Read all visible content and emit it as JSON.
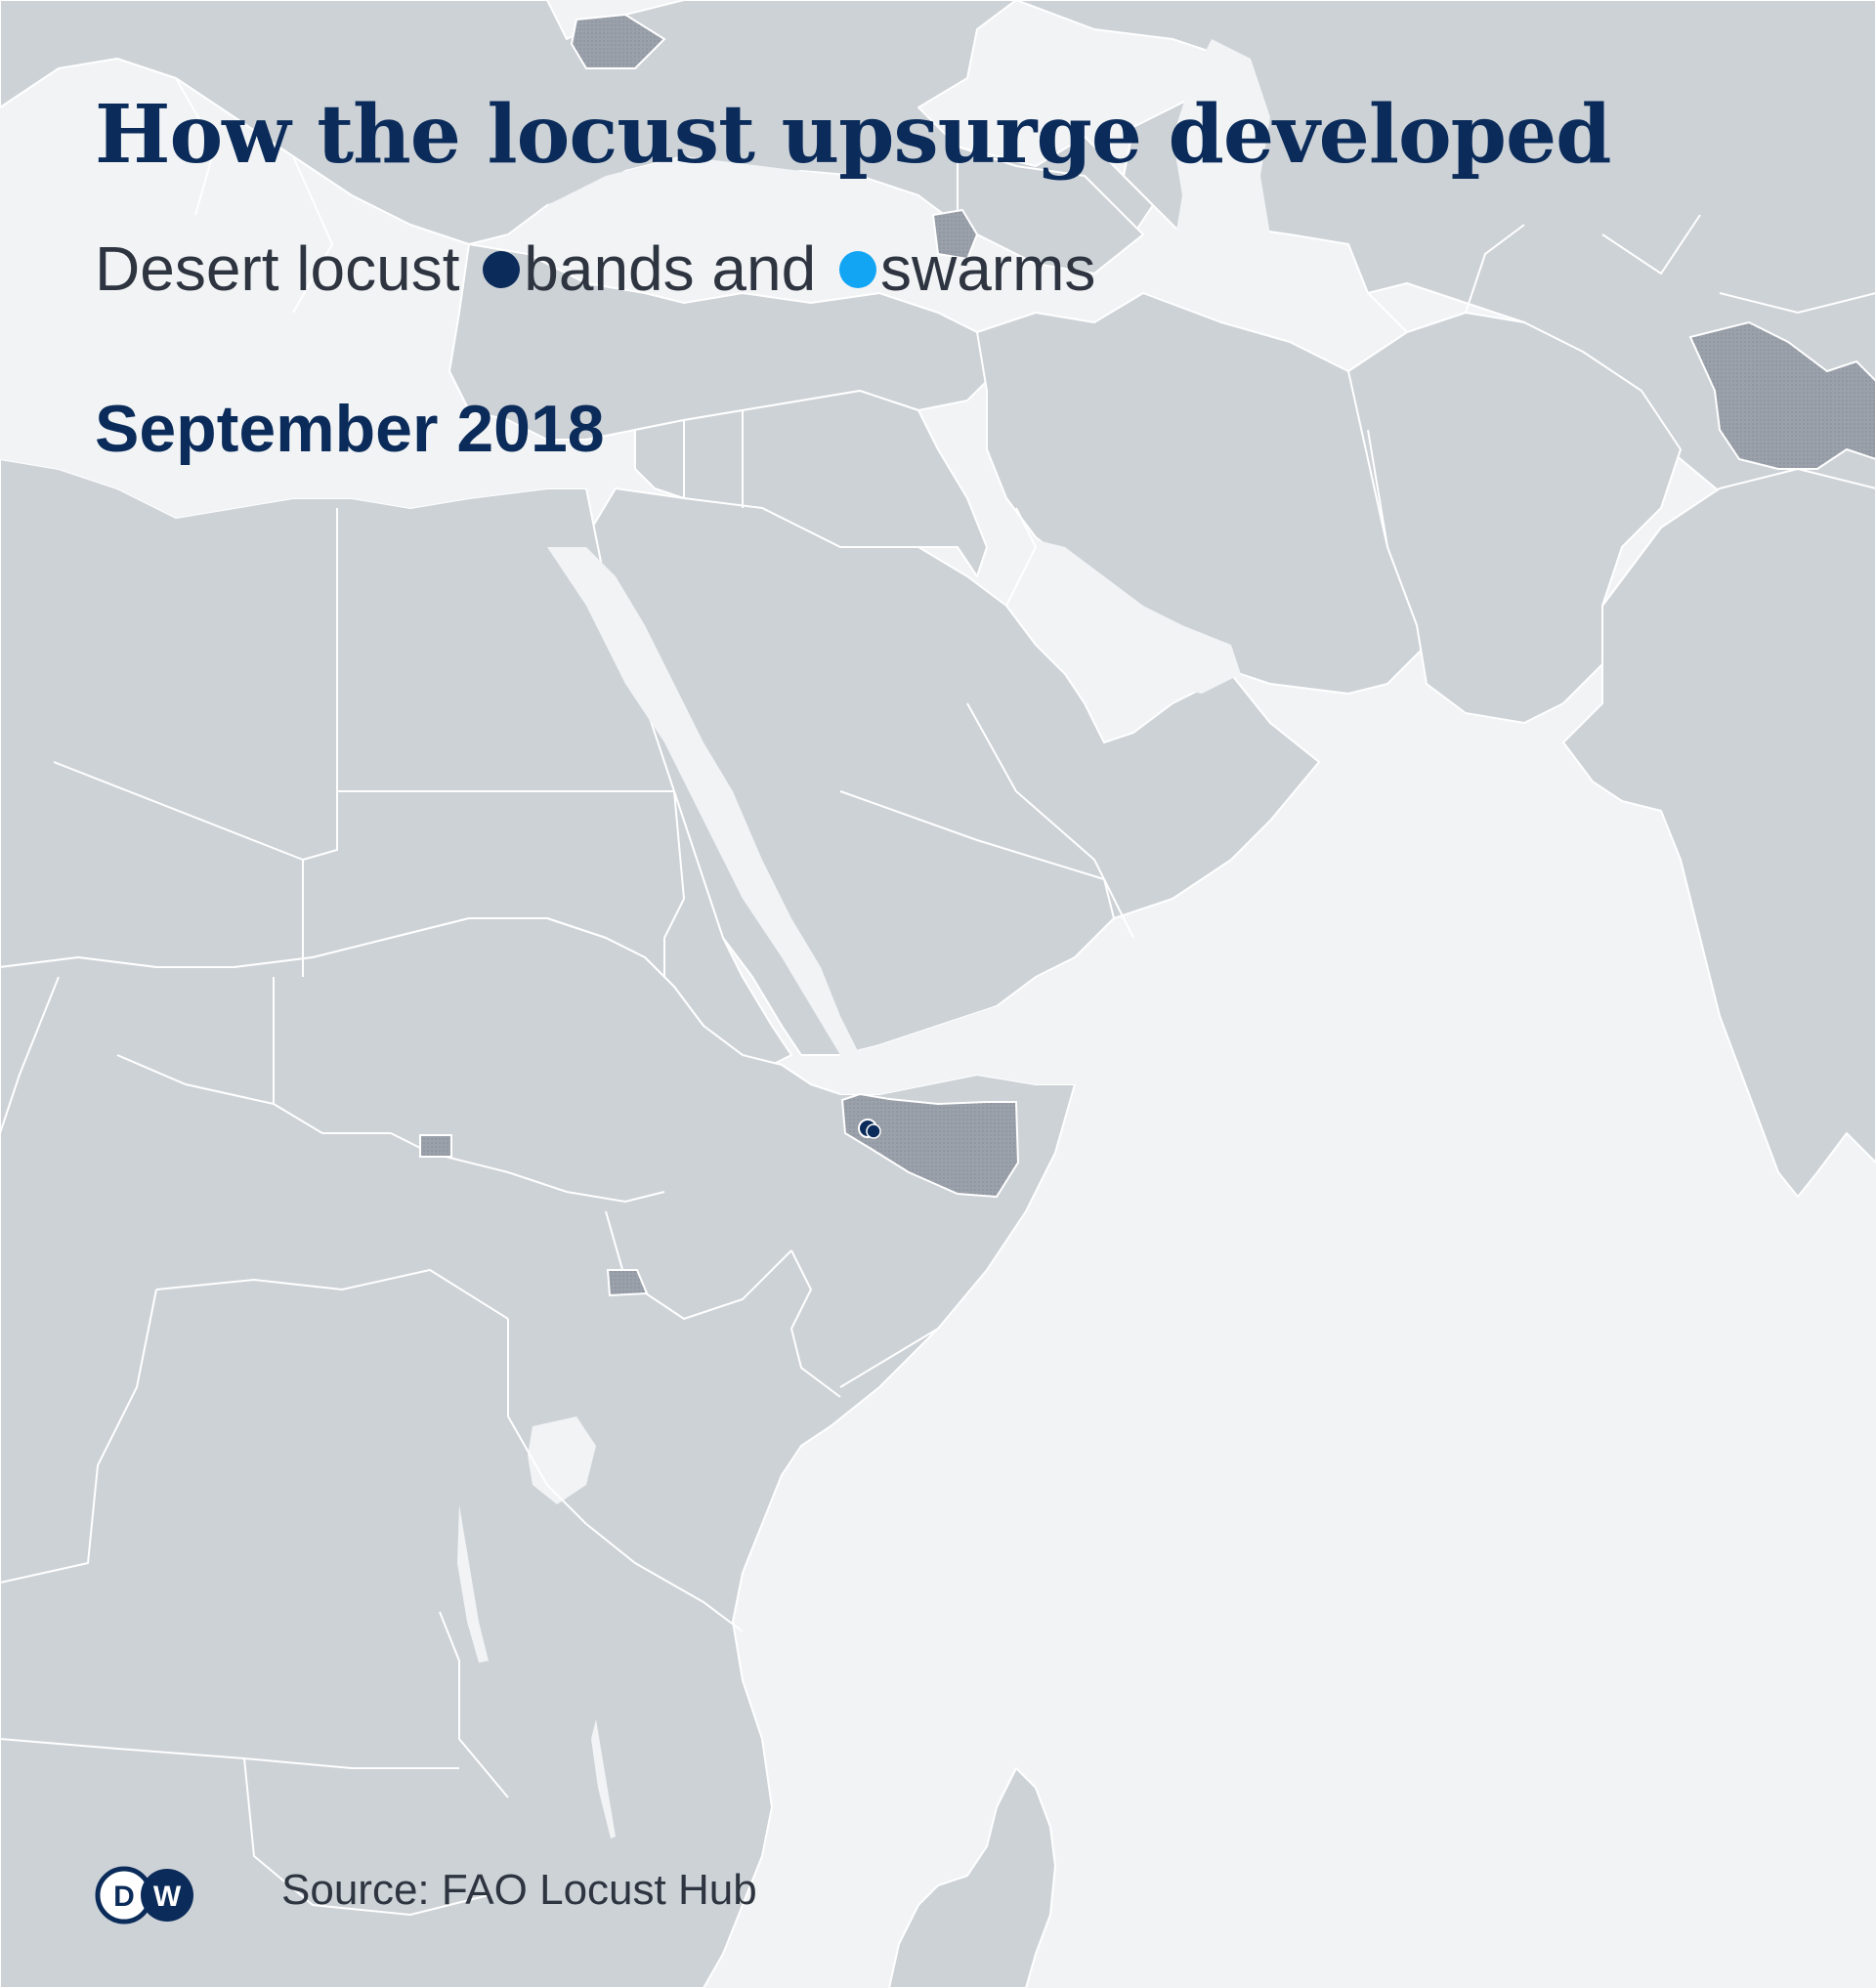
{
  "title": "How the locust upsurge developed",
  "subtitle": {
    "lead": "Desert locust",
    "bands_label": "bands and",
    "swarms_label": "swarms"
  },
  "date_label": "September 2018",
  "source": "Source: FAO Locust Hub",
  "logo_text": "DW",
  "colors": {
    "water": "#f1f3f5",
    "land": "#cdd2d7",
    "border": "#ffffff",
    "affected": "#9ba1aa",
    "bands": "#0b2c5a",
    "swarms": "#12a5f4",
    "title": "#0b2c5a"
  },
  "legend": [
    {
      "name": "bands",
      "color": "#0b2c5a"
    },
    {
      "name": "swarms",
      "color": "#12a5f4"
    }
  ],
  "affected_areas": [
    "Somaliland (northern Somalia)",
    "Kashmir region",
    "South Sudan (small patch)",
    "Ethiopia–Kenya border (small patch)"
  ],
  "markers": [
    {
      "type": "bands",
      "location": "northern Somalia",
      "count": 2
    }
  ]
}
